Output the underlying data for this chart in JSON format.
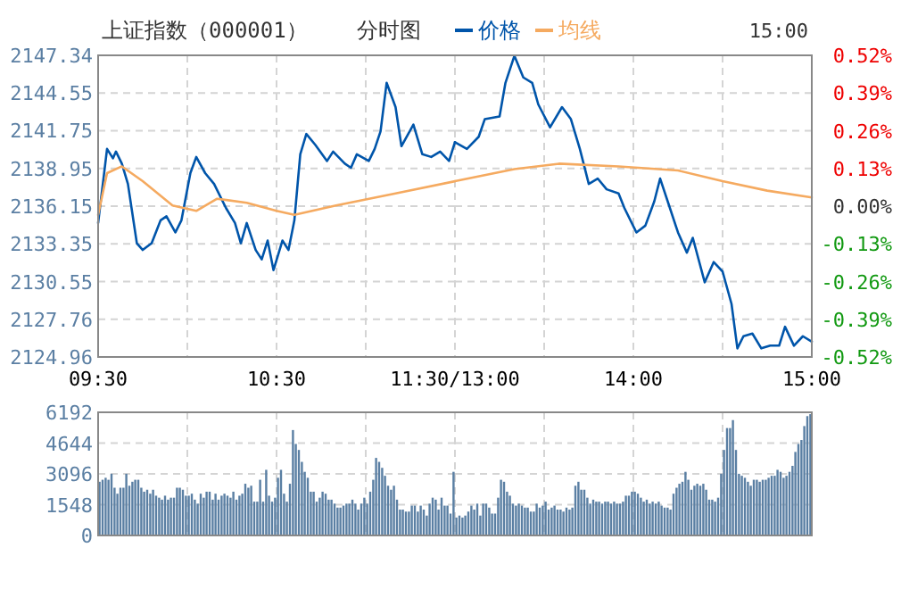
{
  "chart_data": [
    {
      "type": "line",
      "title": "上证指数（000001）",
      "subtitle": "分时图",
      "legend": "top",
      "grid": true,
      "xlim": [
        9.5,
        11.5
      ],
      "xticks": [
        {
          "value": 9.5,
          "label": "09:30"
        },
        {
          "value": 10,
          "label": null
        },
        {
          "value": 10.5,
          "label": "10:30"
        },
        {
          "value": 11,
          "label": null
        },
        {
          "value": 11.5,
          "label": "11:30/13:00"
        }
      ],
      "ylim": [
        2124.96,
        2147.34
      ],
      "yticks": [
        2124.96,
        2127.76,
        2130.55,
        2133.35,
        2136.15,
        2138.95,
        2141.75,
        2144.55,
        2147.34
      ],
      "series": [
        {
          "name": "价格",
          "color": "#0055aa",
          "x": [
            9.5,
            9.55,
            9.583,
            9.6,
            9.633,
            9.667,
            9.717,
            9.75,
            9.8,
            9.85,
            9.883,
            9.933,
            9.967,
            10.017,
            10.05,
            10.1,
            10.15,
            10.217,
            10.267,
            10.3,
            10.333,
            10.383,
            10.417,
            10.45,
            10.483,
            10.533,
            10.567,
            10.6,
            10.633,
            10.667,
            10.717,
            10.783,
            10.817,
            10.883,
            10.917,
            10.95,
            11.017,
            11.05,
            11.083,
            11.117,
            11.167,
            11.2,
            11.267,
            11.317,
            11.367,
            11.417,
            11.467,
            11.5
          ],
          "values": [
            2134.9,
            2140.4,
            2139.7,
            2140.2,
            2139.3,
            2137.8,
            2133.4,
            2132.9,
            2133.4,
            2135.1,
            2135.4,
            2134.2,
            2135.1,
            2138.6,
            2139.8,
            2138.6,
            2137.8,
            2136.0,
            2134.9,
            2133.4,
            2134.9,
            2132.9,
            2132.2,
            2133.6,
            2131.4,
            2133.6,
            2132.9,
            2135.1,
            2140.0,
            2141.5,
            2140.7,
            2139.5,
            2140.2,
            2139.3,
            2139.0,
            2140.0,
            2139.5,
            2140.4,
            2141.7,
            2145.3,
            2143.5,
            2140.6,
            2142.2,
            2140.0,
            2139.8,
            2140.2,
            2139.5,
            2140.9
          ]
        },
        {
          "name": "均线",
          "color": "#f5aa60",
          "x": [
            9.5,
            9.55,
            9.633,
            9.75,
            9.917,
            10.05,
            10.167,
            10.333,
            10.5,
            10.6,
            10.833,
            11.167,
            11.5
          ],
          "values": [
            2135.5,
            2138.6,
            2139.1,
            2138.0,
            2136.2,
            2135.8,
            2136.7,
            2136.4,
            2135.8,
            2135.5,
            2136.2,
            2137.1,
            2138.0
          ]
        }
      ]
    },
    {
      "type": "line",
      "grid": true,
      "tick_labels": "x",
      "annotations": [
        "15:00"
      ],
      "xlim": [
        13,
        15
      ],
      "xticks": [
        {
          "value": 13,
          "label": null
        },
        {
          "value": 13.5,
          "label": null
        },
        {
          "value": 14,
          "label": "14:00"
        },
        {
          "value": 14.5,
          "label": null
        },
        {
          "value": 15,
          "label": "15:00"
        }
      ],
      "ylim": [
        2124.96,
        2147.34
      ],
      "yticks": [
        2124.96,
        2127.76,
        2130.55,
        2133.35,
        2136.15,
        2138.95,
        2141.75,
        2144.55,
        2147.34
      ],
      "y2lim": [
        -0.52,
        0.52
      ],
      "y2ticks": [
        {
          "value": -0.52,
          "label": "-0.52%"
        },
        {
          "value": -0.39,
          "label": "-0.39%"
        },
        {
          "value": -0.26,
          "label": "-0.26%"
        },
        {
          "value": -0.13,
          "label": "-0.13%"
        },
        {
          "value": 0,
          "label": "0.00%"
        },
        {
          "value": 0.13,
          "label": "0.13%"
        },
        {
          "value": 0.26,
          "label": "0.26%"
        },
        {
          "value": 0.39,
          "label": "0.39%"
        },
        {
          "value": 0.52,
          "label": "0.52%"
        }
      ],
      "series": [
        {
          "color": "#0055aa",
          "x": [
            13,
            13.067,
            13.133,
            13.167,
            13.25,
            13.283,
            13.333,
            13.383,
            13.433,
            13.467,
            13.533,
            13.6,
            13.65,
            13.7,
            13.75,
            13.8,
            13.85,
            13.917,
            13.95,
            14.017,
            14.067,
            14.117,
            14.15,
            14.2,
            14.25,
            14.3,
            14.333,
            14.4,
            14.45,
            14.5,
            14.55,
            14.583,
            14.617,
            14.667,
            14.717,
            14.767,
            14.817,
            14.85,
            14.9,
            14.95,
            15
          ],
          "values": [
            2140.9,
            2140.4,
            2141.3,
            2142.6,
            2142.8,
            2145.3,
            2147.3,
            2145.7,
            2145.3,
            2143.7,
            2142.0,
            2143.5,
            2142.6,
            2140.4,
            2137.8,
            2138.2,
            2137.4,
            2137.1,
            2136.0,
            2134.2,
            2134.7,
            2136.5,
            2138.2,
            2136.2,
            2134.2,
            2132.7,
            2133.8,
            2130.5,
            2132.0,
            2131.3,
            2128.9,
            2125.6,
            2126.5,
            2126.7,
            2125.6,
            2125.8,
            2125.8,
            2127.2,
            2125.8,
            2126.5,
            2126.1
          ]
        },
        {
          "color": "#f5aa60",
          "x": [
            13,
            13.333,
            13.583,
            13.917,
            14.25,
            14.5,
            14.75,
            15
          ],
          "values": [
            2138.0,
            2138.9,
            2139.3,
            2139.1,
            2138.8,
            2138.0,
            2137.3,
            2136.8
          ]
        }
      ]
    },
    {
      "type": "bar",
      "grid": true,
      "tick_labels": "y",
      "xlim": [
        9.5,
        11.5
      ],
      "xticks": [
        {
          "value": 9.5,
          "label": null
        },
        {
          "value": 10,
          "label": null
        },
        {
          "value": 10.5,
          "label": null
        },
        {
          "value": 11,
          "label": null
        },
        {
          "value": 11.5,
          "label": null
        }
      ],
      "ylim": [
        0,
        6192
      ],
      "yticks": [
        0,
        1548,
        3096,
        4644,
        6192
      ],
      "series": [
        {
          "color": "#5a7fa3",
          "x": [
            9.508,
            9.525,
            9.542,
            9.558,
            9.575,
            9.592,
            9.608,
            9.625,
            9.642,
            9.658,
            9.675,
            9.692,
            9.708,
            9.725,
            9.742,
            9.758,
            9.775,
            9.792,
            9.808,
            9.825,
            9.842,
            9.858,
            9.875,
            9.892,
            9.908,
            9.925,
            9.942,
            9.958,
            9.975,
            9.992,
            10.008,
            10.025,
            10.042,
            10.058,
            10.075,
            10.092,
            10.108,
            10.125,
            10.142,
            10.158,
            10.175,
            10.192,
            10.208,
            10.225,
            10.242,
            10.258,
            10.275,
            10.292,
            10.308,
            10.325,
            10.342,
            10.358,
            10.375,
            10.392,
            10.408,
            10.425,
            10.442,
            10.458,
            10.475,
            10.492,
            10.508,
            10.525,
            10.542,
            10.558,
            10.575,
            10.592,
            10.608,
            10.625,
            10.642,
            10.658,
            10.675,
            10.692,
            10.708,
            10.725,
            10.742,
            10.758,
            10.775,
            10.792,
            10.808,
            10.825,
            10.842,
            10.858,
            10.875,
            10.892,
            10.908,
            10.925,
            10.942,
            10.958,
            10.975,
            10.992,
            11.008,
            11.025,
            11.042,
            11.058,
            11.075,
            11.092,
            11.108,
            11.125,
            11.142,
            11.158,
            11.175,
            11.192,
            11.208,
            11.225,
            11.242,
            11.258,
            11.275,
            11.292,
            11.308,
            11.325,
            11.342,
            11.358,
            11.375,
            11.392,
            11.408,
            11.425,
            11.442,
            11.458,
            11.475,
            11.492
          ],
          "values": [
            2700,
            2800,
            2900,
            2800,
            3100,
            2400,
            2100,
            2400,
            2400,
            3100,
            2500,
            2700,
            2800,
            2800,
            2400,
            2200,
            2300,
            2100,
            2300,
            2000,
            1900,
            1800,
            2000,
            1800,
            1900,
            1900,
            2400,
            2400,
            2300,
            2000,
            2000,
            2100,
            1800,
            1600,
            2100,
            1900,
            2200,
            2200,
            1800,
            2100,
            1800,
            2000,
            2100,
            2000,
            1900,
            2200,
            1800,
            2000,
            2100,
            2600,
            2400,
            2500,
            1700,
            1700,
            2800,
            1700,
            3300,
            2000,
            1700,
            1900,
            2900,
            3300,
            2100,
            1700,
            2600,
            5300,
            4600,
            4300,
            3700,
            3200,
            2900,
            2200,
            2200,
            1700,
            1900,
            2200,
            2100,
            1800,
            1800,
            1600,
            1400,
            1400,
            1500,
            1600,
            1600,
            1800,
            1600,
            1300,
            1600,
            1900,
            1600,
            2200,
            2800,
            3900,
            3700,
            3400,
            3000,
            2500,
            2300,
            2500,
            1800,
            1300,
            1300,
            1200,
            1200,
            1500,
            1500,
            1200,
            1500,
            1300,
            1000,
            1600,
            1900,
            1800,
            1300,
            1900,
            1500,
            1500,
            1100,
            3200
          ]
        }
      ]
    },
    {
      "type": "bar",
      "grid": true,
      "tick_labels": false,
      "xlim": [
        13,
        15
      ],
      "xticks": [
        {
          "value": 13,
          "label": null
        },
        {
          "value": 13.5,
          "label": null
        },
        {
          "value": 14,
          "label": null
        },
        {
          "value": 14.5,
          "label": null
        },
        {
          "value": 15,
          "label": null
        }
      ],
      "ylim": [
        0,
        6192
      ],
      "yticks": [
        0,
        1548,
        3096,
        4644,
        6192
      ],
      "series": [
        {
          "color": "#5a7fa3",
          "x": [
            13.008,
            13.025,
            13.042,
            13.058,
            13.075,
            13.092,
            13.108,
            13.125,
            13.142,
            13.158,
            13.175,
            13.192,
            13.208,
            13.225,
            13.242,
            13.258,
            13.275,
            13.292,
            13.308,
            13.325,
            13.342,
            13.358,
            13.375,
            13.392,
            13.408,
            13.425,
            13.442,
            13.458,
            13.475,
            13.492,
            13.508,
            13.525,
            13.542,
            13.558,
            13.575,
            13.592,
            13.608,
            13.625,
            13.642,
            13.658,
            13.675,
            13.692,
            13.708,
            13.725,
            13.742,
            13.758,
            13.775,
            13.792,
            13.808,
            13.825,
            13.842,
            13.858,
            13.875,
            13.892,
            13.908,
            13.925,
            13.942,
            13.958,
            13.975,
            13.992,
            14.008,
            14.025,
            14.042,
            14.058,
            14.075,
            14.092,
            14.108,
            14.125,
            14.142,
            14.158,
            14.175,
            14.192,
            14.208,
            14.225,
            14.242,
            14.258,
            14.275,
            14.292,
            14.308,
            14.325,
            14.342,
            14.358,
            14.375,
            14.392,
            14.408,
            14.425,
            14.442,
            14.458,
            14.475,
            14.492,
            14.508,
            14.525,
            14.542,
            14.558,
            14.575,
            14.592,
            14.608,
            14.625,
            14.642,
            14.658,
            14.675,
            14.692,
            14.708,
            14.725,
            14.742,
            14.758,
            14.775,
            14.792,
            14.808,
            14.825,
            14.842,
            14.858,
            14.875,
            14.892,
            14.908,
            14.925,
            14.942,
            14.958,
            14.975,
            14.992
          ],
          "values": [
            900,
            1000,
            900,
            1000,
            1200,
            1500,
            1300,
            1600,
            1000,
            1600,
            1600,
            1400,
            1100,
            1100,
            1900,
            2800,
            2700,
            2200,
            2000,
            1600,
            1500,
            1600,
            1500,
            1400,
            1400,
            1200,
            1200,
            1600,
            1400,
            1500,
            1700,
            1300,
            1400,
            1500,
            1300,
            1300,
            1200,
            1400,
            1300,
            1400,
            2500,
            2700,
            2300,
            2300,
            1900,
            1600,
            1800,
            1700,
            1700,
            1600,
            1700,
            1700,
            1600,
            1700,
            1600,
            1600,
            1700,
            2000,
            2000,
            2200,
            2200,
            2100,
            1900,
            1700,
            1800,
            1600,
            1700,
            1600,
            1700,
            1500,
            1400,
            1400,
            1300,
            2100,
            2400,
            2600,
            2700,
            3200,
            2800,
            2300,
            2500,
            2600,
            2500,
            2600,
            2300,
            1800,
            1800,
            1700,
            1900,
            3100,
            4300,
            5400,
            5400,
            5800,
            4300,
            3100,
            3000,
            2900,
            2700,
            2500,
            2800,
            2800,
            2700,
            2800,
            2800,
            2900,
            3000,
            3000,
            3300,
            3200,
            2900,
            3000,
            3200,
            3500,
            4200,
            4600,
            4800,
            5500,
            6000,
            6100
          ]
        }
      ]
    }
  ]
}
